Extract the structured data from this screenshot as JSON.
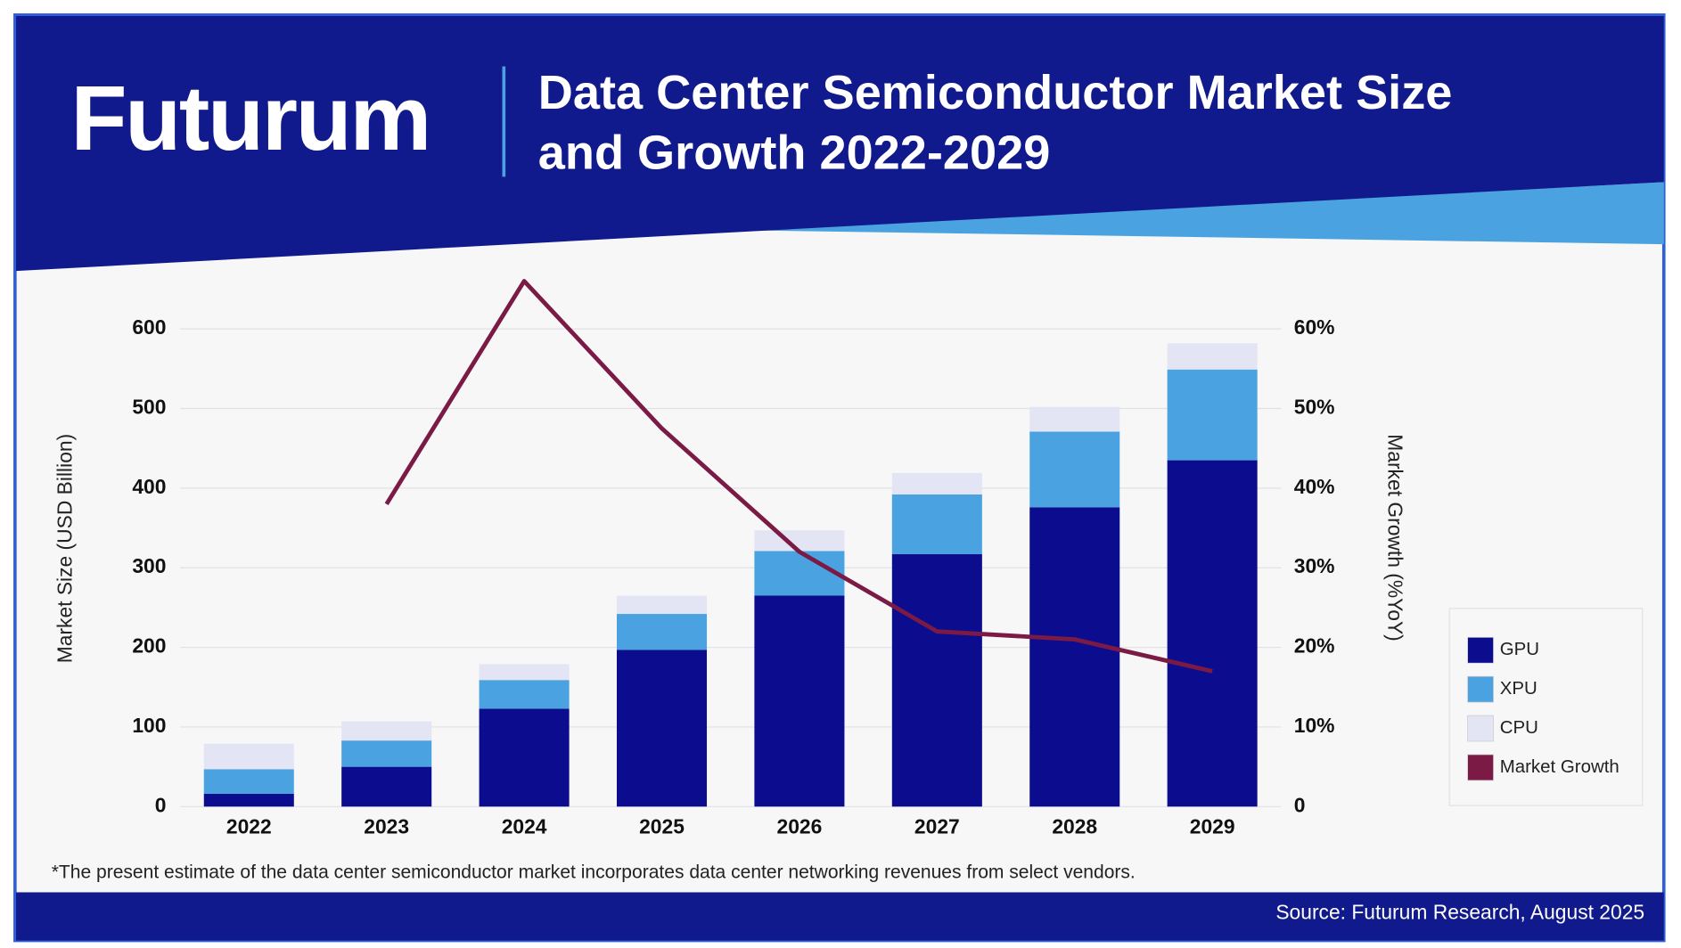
{
  "chart_data": {
    "type": "bar",
    "brand": "Futurum",
    "title": "Data Center Semiconductor Market Size and Growth 2022-2029",
    "y_label": "Market Size (USD Billion)",
    "y2_label": "Market Growth (%YoY)",
    "note": "*The present estimate of the data center semiconductor market incorporates data center networking revenues from select vendors.",
    "source": "Source: Futurum Research, August 2025",
    "stacked": true,
    "grid": true,
    "legend": "right",
    "categories": [
      "2022",
      "2023",
      "2024",
      "2025",
      "2026",
      "2027",
      "2028",
      "2029"
    ],
    "series": [
      {
        "name": "GPU",
        "type": "bar",
        "color": "#0c0c8f",
        "values": [
          16,
          50,
          123,
          197,
          265,
          317,
          376,
          435
        ]
      },
      {
        "name": "XPU",
        "type": "bar",
        "color": "#4aa3e0",
        "values": [
          31,
          33,
          36,
          45,
          56,
          75,
          95,
          114
        ]
      },
      {
        "name": "CPU",
        "type": "bar",
        "color": "#e3e5f5",
        "values": [
          32,
          24,
          20,
          23,
          26,
          27,
          31,
          33
        ]
      },
      {
        "name": "Market Growth",
        "type": "line",
        "axis": "y2",
        "color": "#7a1a45",
        "values": [
          null,
          38,
          66,
          47.5,
          32,
          22,
          21,
          17
        ]
      }
    ],
    "ylim": [
      0,
      670
    ],
    "yticks": [
      0,
      100,
      200,
      300,
      400,
      500,
      600
    ],
    "y2lim": [
      0,
      67
    ],
    "y2ticks": [
      0,
      {
        "value": 10,
        "label": "10%"
      },
      {
        "value": 20,
        "label": "20%"
      },
      {
        "value": 30,
        "label": "30%"
      },
      {
        "value": 40,
        "label": "40%"
      },
      {
        "value": 50,
        "label": "50%"
      },
      {
        "value": 60,
        "label": "60%"
      }
    ]
  }
}
